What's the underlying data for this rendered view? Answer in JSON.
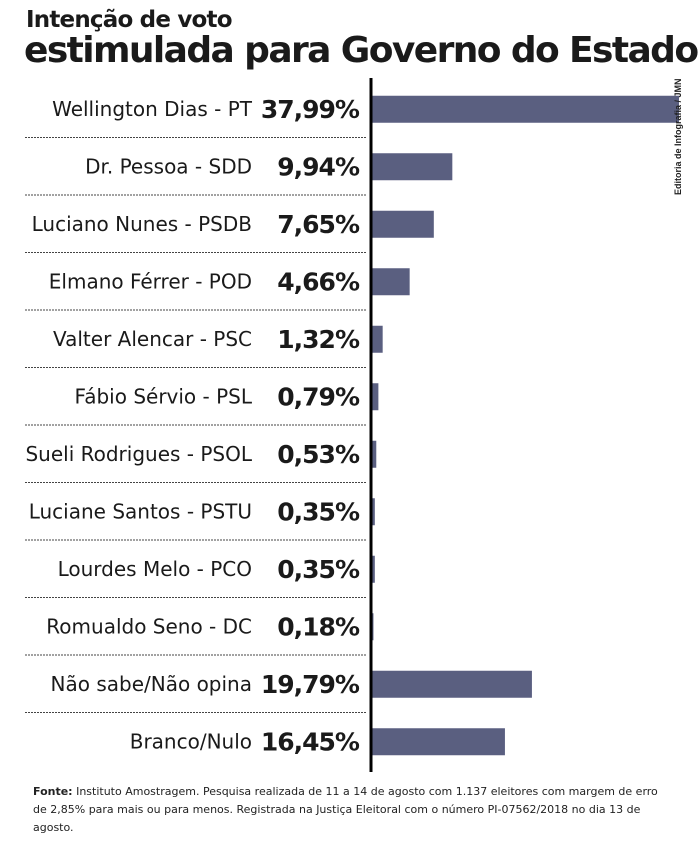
{
  "header": {
    "title_line1": "Intenção de voto",
    "title_line2": "estimulada para Governo do Estado"
  },
  "credit": "Editoria de Infografia / JMN",
  "footnote": {
    "label": "Fonte:",
    "text": " Instituto Amostragem. Pesquisa realizada de 11 a 14 de agosto com 1.137 eleitores com margem de erro de 2,85% para mais ou para menos. Registrada na Justiça Eleitoral com o número PI-07562/2018 no dia 13 de agosto."
  },
  "colors": {
    "bar": "#5a5f80",
    "axis": "#000000",
    "separator": "#444444"
  },
  "chart_data": {
    "type": "bar",
    "orientation": "horizontal",
    "title": "estimulada para Governo do Estado",
    "categories": [
      "Wellington Dias - PT",
      "Dr. Pessoa - SDD",
      "Luciano Nunes - PSDB",
      "Elmano Férrer - POD",
      "Valter Alencar - PSC",
      "Fábio Sérvio - PSL",
      "Sueli Rodrigues - PSOL",
      "Luciane Santos - PSTU",
      "Lourdes Melo - PCO",
      "Romualdo Seno - DC",
      "Não sabe/Não opina",
      "Branco/Nulo"
    ],
    "values": [
      37.99,
      9.94,
      7.65,
      4.66,
      1.32,
      0.79,
      0.53,
      0.35,
      0.35,
      0.18,
      19.79,
      16.45
    ],
    "value_labels": [
      "37,99%",
      "9,94%",
      "7,65%",
      "4,66%",
      "1,32%",
      "0,79%",
      "0,53%",
      "0,35%",
      "0,35%",
      "0,18%",
      "19,79%",
      "16,45%"
    ],
    "xlabel": "",
    "ylabel": "",
    "xlim": [
      0,
      37.99
    ],
    "grid": false,
    "legend": "none"
  }
}
